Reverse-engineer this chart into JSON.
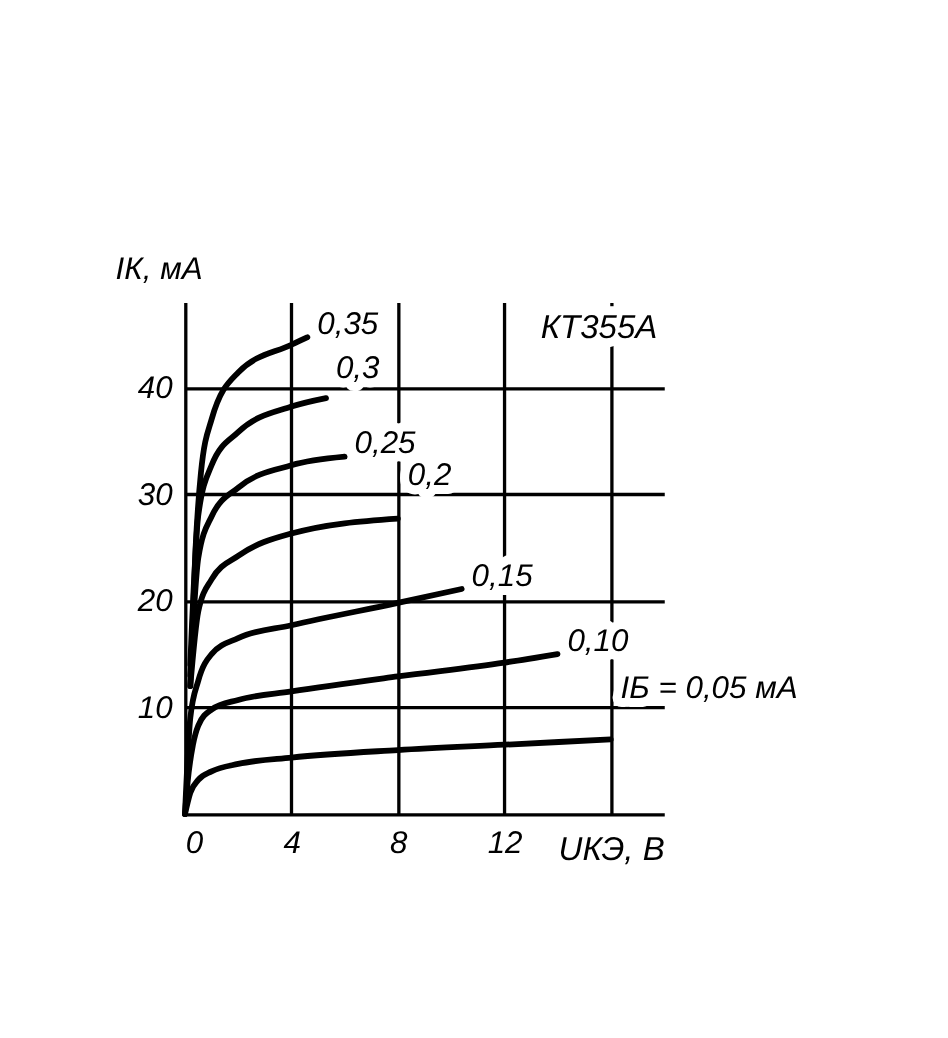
{
  "chart_data": {
    "type": "line",
    "xlabel": "UКЭ, В",
    "ylabel": "IК, мА",
    "annotations": [
      "КТ355А"
    ],
    "xlim": [
      0,
      18
    ],
    "ylim": [
      0,
      48
    ],
    "xticks": [
      0,
      4,
      8,
      12,
      {
        "value": 16,
        "label": null
      }
    ],
    "yticks": [
      {
        "value": 0,
        "label": null
      },
      10,
      20,
      30,
      40
    ],
    "grid": true,
    "marker": "none",
    "line_style": "solid",
    "series": [
      {
        "name": "0,35",
        "color": "#000000",
        "x": [
          0.2,
          0.4,
          0.6,
          1,
          2,
          4,
          4.6
        ],
        "values": [
          12,
          25,
          32,
          37,
          41.4,
          44,
          44.7
        ]
      },
      {
        "name": "0,3",
        "color": "#000000",
        "x": [
          0.2,
          0.5,
          1,
          2,
          4,
          5.3
        ],
        "values": [
          14,
          28,
          32.7,
          35.8,
          38.2,
          39
        ]
      },
      {
        "name": "0,25",
        "color": "#000000",
        "x": [
          0.2,
          0.5,
          1,
          2,
          4,
          6
        ],
        "values": [
          13,
          24,
          27.9,
          30.6,
          32.7,
          33.5
        ]
      },
      {
        "name": "0,2",
        "color": "#000000",
        "x": [
          0.2,
          0.5,
          1,
          2,
          4,
          8
        ],
        "values": [
          12,
          19,
          22,
          24.2,
          26.3,
          27.7
        ]
      },
      {
        "name": "0,15",
        "color": "#000000",
        "x": [
          0,
          0.2,
          0.5,
          1,
          2,
          4,
          8,
          10.4
        ],
        "values": [
          0,
          9,
          12.5,
          15,
          16.5,
          17.7,
          19.8,
          21.1
        ]
      },
      {
        "name": "0,10",
        "color": "#000000",
        "x": [
          0,
          0.1,
          0.3,
          0.5,
          1,
          2,
          4,
          8,
          12,
          14
        ],
        "values": [
          0,
          3,
          6.5,
          8.3,
          9.8,
          10.7,
          11.5,
          12.9,
          14.2,
          15
        ]
      },
      {
        "name": "IБ = 0,05 мА",
        "color": "#000000",
        "x": [
          0,
          0.2,
          0.5,
          1,
          2,
          4,
          8,
          12,
          16
        ],
        "values": [
          0,
          2,
          3.2,
          4,
          4.7,
          5.3,
          6,
          6.5,
          7
        ]
      }
    ]
  }
}
